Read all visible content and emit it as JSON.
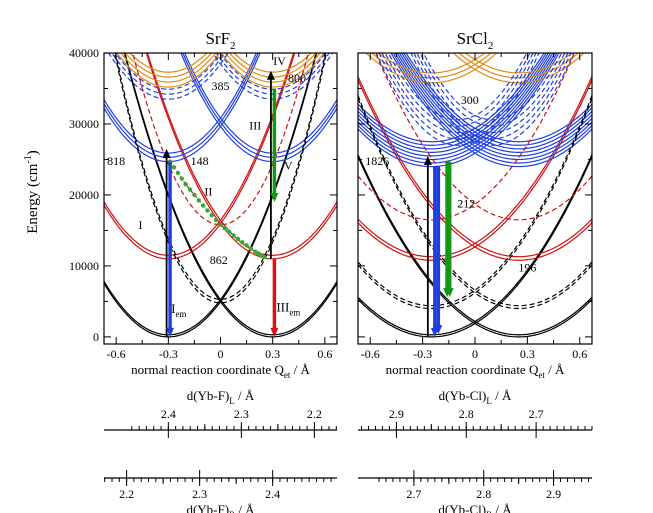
{
  "figure": {
    "y_axis_label": "Energy (cm",
    "y_axis_label_sup": "-1",
    "y_axis_label_close": ")",
    "colors": {
      "ground": "#000000",
      "band2": "#d01010",
      "band3": "#1f3fe0",
      "band4": "#e08a10",
      "band4_alt": "#2a4be0",
      "em_blue": "#1f3fe0",
      "em_red": "#e01010",
      "em_green": "#119911",
      "dot_green": "#33aa33"
    }
  },
  "chart_data": [
    {
      "type": "line",
      "id": "SrF2",
      "title": "SrF",
      "title_sub": "2",
      "xlabel": "normal reaction coordinate Q",
      "xlabel_sub": "et",
      "xlabel_unit": " / Å",
      "ylabel": "Energy (cm-1)",
      "xlim": [
        -0.67,
        0.67
      ],
      "ylim": [
        -1000,
        40000
      ],
      "x_ticks": [
        -0.6,
        -0.3,
        0,
        0.3,
        0.6
      ],
      "x_tick_labels": [
        "-0.6",
        "-0.3",
        "0",
        "0.3",
        "0.6"
      ],
      "y_ticks": [
        0,
        10000,
        20000,
        30000,
        40000
      ],
      "y_tick_labels": [
        "0",
        "10000",
        "20000",
        "30000",
        "40000"
      ],
      "curvature": 55000,
      "curves": [
        {
          "group": "ground",
          "center": -0.3,
          "offset": 0,
          "levels": 2,
          "split": 300,
          "style": "solid"
        },
        {
          "group": "ground",
          "center": 0.3,
          "offset": 0,
          "levels": 2,
          "split": 300,
          "style": "solid"
        },
        {
          "group": "band2",
          "center": -0.3,
          "offset": 11000,
          "levels": 2,
          "split": 500,
          "style": "solid"
        },
        {
          "group": "band2",
          "center": 0.3,
          "offset": 11000,
          "levels": 2,
          "split": 500,
          "style": "solid"
        },
        {
          "group": "band3",
          "center": -0.3,
          "offset": 24700,
          "levels": 3,
          "split": 600,
          "style": "solid"
        },
        {
          "group": "band3",
          "center": 0.3,
          "offset": 24700,
          "levels": 3,
          "split": 600,
          "style": "solid"
        },
        {
          "group": "band4",
          "center": -0.3,
          "offset": 35200,
          "levels": 4,
          "split": 700,
          "style": "solid"
        },
        {
          "group": "band4",
          "center": 0.3,
          "offset": 35200,
          "levels": 4,
          "split": 700,
          "style": "solid"
        },
        {
          "group": "band3",
          "center": -0.3,
          "offset": 33500,
          "levels": 3,
          "split": 700,
          "style": "dashed"
        },
        {
          "group": "band3",
          "center": 0.3,
          "offset": 33500,
          "levels": 3,
          "split": 700,
          "style": "dashed"
        },
        {
          "group": "ground",
          "center": 0.0,
          "offset": 4800,
          "levels": 2,
          "split": 500,
          "style": "dashed",
          "k": 95000
        },
        {
          "group": "band2",
          "center": 0.0,
          "offset": 15800,
          "levels": 1,
          "split": 0,
          "style": "dashed",
          "k": 95000
        }
      ],
      "arrows": [
        {
          "color": "ground",
          "x": -0.31,
          "y_from": 0,
          "y_to": 26500
        },
        {
          "color": "em_blue",
          "x": -0.29,
          "y_from": 24700,
          "y_to": 0
        },
        {
          "color": "ground",
          "x": 0.29,
          "y_from": 11000,
          "y_to": 37500
        },
        {
          "color": "em_red",
          "x": 0.31,
          "y_from": 11000,
          "y_to": 0
        },
        {
          "color": "em_green",
          "x": 0.31,
          "y_from": 35000,
          "y_to": 19000
        }
      ],
      "dotted_path": {
        "color": "dot_green",
        "x": [
          -0.29,
          -0.2,
          -0.1,
          0.0,
          0.1,
          0.2,
          0.27
        ],
        "y": [
          24700,
          21500,
          18500,
          15800,
          13800,
          12000,
          11000
        ]
      },
      "annotations": [
        {
          "text": "I",
          "x": -0.46,
          "y": 15200
        },
        {
          "text": "II",
          "x": -0.07,
          "y": 19900
        },
        {
          "text": "III",
          "x": 0.2,
          "y": 29200
        },
        {
          "text": "IV",
          "x": 0.34,
          "y": 38300
        },
        {
          "text": "V",
          "x": 0.39,
          "y": 23600
        },
        {
          "text": "818",
          "x": -0.6,
          "y": 24200
        },
        {
          "text": "148",
          "x": -0.12,
          "y": 24200
        },
        {
          "text": "385",
          "x": 0.0,
          "y": 34800
        },
        {
          "text": "800",
          "x": 0.44,
          "y": 35900
        },
        {
          "text": "862",
          "x": -0.01,
          "y": 10300
        }
      ],
      "sub_annotations": [
        {
          "text": "I",
          "sub": "em",
          "x": -0.24,
          "y": 3400
        },
        {
          "text": "III",
          "sub": "em",
          "x": 0.39,
          "y": 3600
        }
      ],
      "bond_scales": [
        {
          "label": "d(Yb-F)",
          "label_sub": "L",
          "label_unit": " / Å",
          "labels": [
            "2.4",
            "2.3",
            "2.2"
          ],
          "major_x": [
            -0.3,
            0.12,
            0.54
          ],
          "labels_above": true,
          "minor_step": 0.042
        },
        {
          "label": "d(Yb-F)",
          "label_sub": "R",
          "label_unit": " / Å",
          "labels": [
            "2.2",
            "2.3",
            "2.4"
          ],
          "major_x": [
            -0.54,
            -0.12,
            0.3
          ],
          "labels_above": false,
          "minor_step": 0.042
        }
      ]
    },
    {
      "type": "line",
      "id": "SrCl2",
      "title": "SrCl",
      "title_sub": "2",
      "xlabel": "normal reaction coordinate Q",
      "xlabel_sub": "et",
      "xlabel_unit": " / Å",
      "ylabel": "",
      "xlim": [
        -0.67,
        0.67
      ],
      "ylim": [
        -1000,
        40000
      ],
      "x_ticks": [
        -0.6,
        -0.3,
        0,
        0.3,
        0.6
      ],
      "x_tick_labels": [
        "-0.6",
        "-0.3",
        "0",
        "0.3",
        "0.6"
      ],
      "y_ticks": [
        0,
        10000,
        20000,
        30000,
        40000
      ],
      "y_tick_labels": [
        "",
        "",
        "",
        "",
        ""
      ],
      "curvature": 30000,
      "curves": [
        {
          "group": "ground",
          "center": -0.25,
          "offset": 0,
          "levels": 2,
          "split": 300,
          "style": "solid"
        },
        {
          "group": "ground",
          "center": 0.25,
          "offset": 0,
          "levels": 2,
          "split": 300,
          "style": "solid"
        },
        {
          "group": "band2",
          "center": -0.25,
          "offset": 10800,
          "levels": 2,
          "split": 500,
          "style": "solid"
        },
        {
          "group": "band2",
          "center": 0.25,
          "offset": 10800,
          "levels": 2,
          "split": 500,
          "style": "solid"
        },
        {
          "group": "band3",
          "center": -0.25,
          "offset": 24000,
          "levels": 8,
          "split": 500,
          "style": "solid"
        },
        {
          "group": "band3",
          "center": 0.25,
          "offset": 24000,
          "levels": 8,
          "split": 500,
          "style": "solid"
        },
        {
          "group": "band4",
          "center": -0.25,
          "offset": 35800,
          "levels": 3,
          "split": 700,
          "style": "solid"
        },
        {
          "group": "band4",
          "center": 0.25,
          "offset": 35800,
          "levels": 3,
          "split": 700,
          "style": "solid"
        },
        {
          "group": "band3",
          "center": -0.1,
          "offset": 27000,
          "levels": 5,
          "split": 900,
          "style": "dashed",
          "k": 60000
        },
        {
          "group": "band3",
          "center": 0.1,
          "offset": 27000,
          "levels": 5,
          "split": 900,
          "style": "dashed",
          "k": 60000
        },
        {
          "group": "ground",
          "center": -0.25,
          "offset": 4000,
          "levels": 2,
          "split": 400,
          "style": "dashed",
          "k": 35000
        },
        {
          "group": "ground",
          "center": 0.25,
          "offset": 4000,
          "levels": 2,
          "split": 400,
          "style": "dashed",
          "k": 35000
        },
        {
          "group": "band2",
          "center": -0.25,
          "offset": 16500,
          "levels": 1,
          "split": 0,
          "style": "dashed",
          "k": 35000
        },
        {
          "group": "band2",
          "center": 0.25,
          "offset": 16500,
          "levels": 1,
          "split": 0,
          "style": "dashed",
          "k": 35000
        }
      ],
      "arrows": [
        {
          "color": "ground",
          "x": -0.27,
          "y_from": 0,
          "y_to": 25500
        },
        {
          "color": "em_blue",
          "x": -0.23,
          "y_from": 24000,
          "y_to": 0
        },
        {
          "color": "em_blue",
          "x": -0.21,
          "y_from": 24000,
          "y_to": 400
        },
        {
          "color": "em_green",
          "x": -0.16,
          "y_from": 24700,
          "y_to": 5600
        },
        {
          "color": "em_green",
          "x": -0.145,
          "y_from": 24700,
          "y_to": 5600
        }
      ],
      "dotted_path": null,
      "annotations": [
        {
          "text": "1826",
          "x": -0.56,
          "y": 24200
        },
        {
          "text": "212",
          "x": -0.05,
          "y": 18200
        },
        {
          "text": "300",
          "x": -0.03,
          "y": 32800
        },
        {
          "text": "196",
          "x": 0.3,
          "y": 9200
        }
      ],
      "sub_annotations": [],
      "bond_scales": [
        {
          "label": "d(Yb-Cl)",
          "label_sub": "L",
          "label_unit": " / Å",
          "labels": [
            "2.9",
            "2.8",
            "2.7"
          ],
          "major_x": [
            -0.45,
            -0.05,
            0.35
          ],
          "labels_above": true,
          "minor_step": 0.04
        },
        {
          "label": "d(Yb-Cl)",
          "label_sub": "R",
          "label_unit": " / Å",
          "labels": [
            "2.7",
            "2.8",
            "2.9"
          ],
          "major_x": [
            -0.35,
            0.05,
            0.45
          ],
          "labels_above": false,
          "minor_step": 0.04
        }
      ]
    }
  ]
}
